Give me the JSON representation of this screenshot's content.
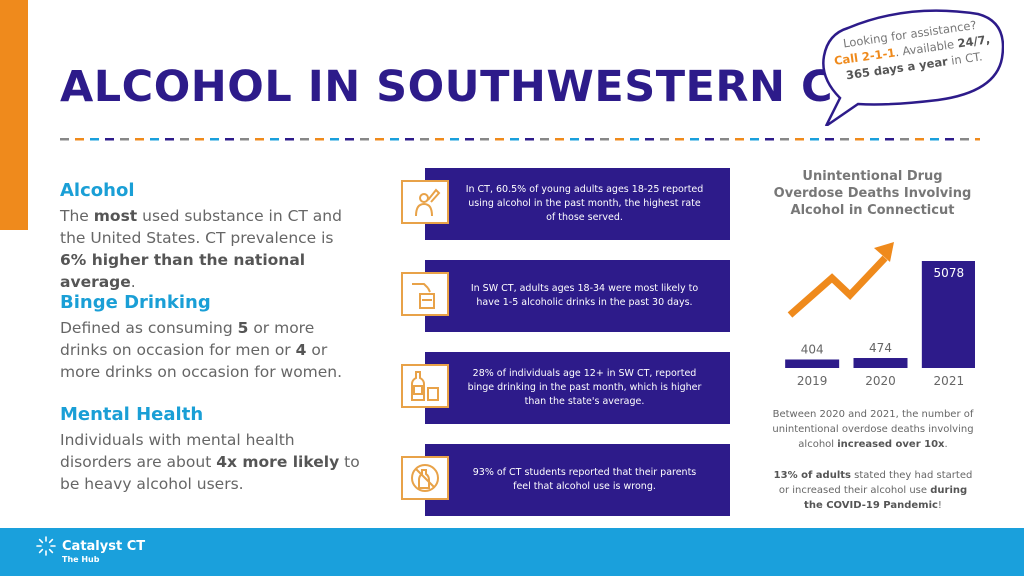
{
  "page": {
    "title": "ALCOHOL IN SOUTHWESTERN CT"
  },
  "bubble": {
    "line1": "Looking for assistance?",
    "call": "Call 2-1-1",
    "line2a": ". Available ",
    "avail": "24/7,",
    "days": "365 days a year",
    "line3": " in CT."
  },
  "sections": {
    "alcohol": {
      "heading": "Alcohol",
      "t1": "The ",
      "b1": "most",
      "t2": " used substance in CT and the United States. CT prevalence is ",
      "b2": "6% higher than the national average",
      "t3": "."
    },
    "binge": {
      "heading": "Binge Drinking",
      "t1": "Defined as consuming ",
      "b1": "5",
      "t2": " or more drinks on occasion for men or ",
      "b2": "4",
      "t3": " or more drinks on occasion for women."
    },
    "mental": {
      "heading": "Mental Health",
      "t1": "Individuals with mental health disorders are about ",
      "b1": "4x more likely",
      "t2": " to be heavy alcohol users."
    }
  },
  "stats": [
    {
      "icon": "drinking-person-icon",
      "text": "In CT, 60.5% of young adults ages 18-25 reported using alcohol in the past month, the highest rate of those served."
    },
    {
      "icon": "pouring-drink-icon",
      "text": "In SW CT, adults ages 18-34 were most likely to have 1-5 alcoholic drinks in the past 30 days."
    },
    {
      "icon": "bottle-and-glass-icon",
      "text": "28% of individuals age 12+ in SW CT, reported binge drinking in the past month, which is higher than the state's average."
    },
    {
      "icon": "no-alcohol-icon",
      "text": "93% of CT students reported that their parents feel that alcohol use is wrong."
    }
  ],
  "chart_data": {
    "type": "bar",
    "title": "Unintentional Drug Overdose Deaths Involving Alcohol in Connecticut",
    "categories": [
      "2019",
      "2020",
      "2021"
    ],
    "values": [
      404,
      474,
      5078
    ],
    "value_labels": [
      "404",
      "474",
      "5078"
    ],
    "ylim": [
      0,
      5600
    ],
    "bar_color": "#2d1b8a",
    "trend_arrow_color": "#ef8a1c"
  },
  "chart_notes": {
    "n1_t1": "Between  2020 and 2021, the number of unintentional overdose deaths involving alcohol ",
    "n1_b1": "increased over 10x",
    "n1_t2": ".",
    "n2_b1": "13% of adults",
    "n2_t1": " stated they had started or increased their alcohol use ",
    "n2_b2": "during the COVID-19 Pandemic",
    "n2_t2": "!"
  },
  "footer": {
    "logo_name": "Catalyst CT",
    "logo_sub": "The Hub"
  },
  "colors": {
    "accent_orange": "#ef8a1c",
    "navy": "#2d1b8a",
    "sky_blue": "#1aa0dc"
  }
}
